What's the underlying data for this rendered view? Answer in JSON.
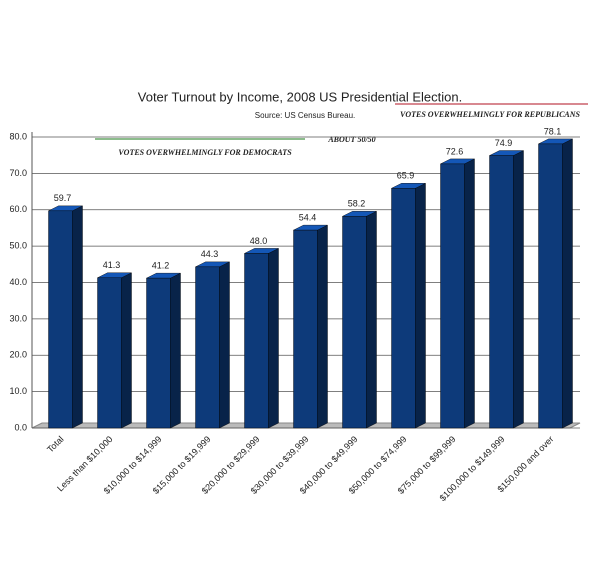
{
  "chart_data": {
    "type": "bar3d",
    "title": "Voter Turnout by Income, 2008 US Presidential Election.",
    "subtitle": "Source: US Census Bureau.",
    "annotations": [
      {
        "text": "VOTES OVERWHELMINGLY FOR DEMOCRATS",
        "color": "#1a7a1a"
      },
      {
        "text": "ABOUT 50/50",
        "color": "#1a2a8a"
      },
      {
        "text": "VOTES OVERWHELMINGLY FOR REPUBLICANS",
        "color": "#b01020"
      }
    ],
    "categories": [
      "Total",
      "Less than $10,000",
      "$10,000 to $14,999",
      "$15,000 to $19,999",
      "$20,000 to $29,999",
      "$30,000 to $39,999",
      "$40,000 to $49,999",
      "$50,000 to $74,999",
      "$75,000 to $99,999",
      "$100,000 to $149,999",
      "$150,000 and over"
    ],
    "values": [
      59.7,
      41.3,
      41.2,
      44.3,
      48.0,
      54.4,
      58.2,
      65.9,
      72.6,
      74.9,
      78.1
    ],
    "value_labels": [
      "59.7",
      "41.3",
      "41.2",
      "44.3",
      "48.0",
      "54.4",
      "58.2",
      "65.9",
      "72.6",
      "74.9",
      "78.1"
    ],
    "color": "#0d3a7a",
    "ylim": [
      0,
      80
    ],
    "yticks": [
      {
        "value": 0,
        "label": "0.0"
      },
      {
        "value": 10,
        "label": "10.0"
      },
      {
        "value": 20,
        "label": "20.0"
      },
      {
        "value": 30,
        "label": "30.0"
      },
      {
        "value": 40,
        "label": "40.0"
      },
      {
        "value": 50,
        "label": "50.0"
      },
      {
        "value": 60,
        "label": "60.0"
      },
      {
        "value": 70,
        "label": "70.0"
      },
      {
        "value": 80,
        "label": "80.0"
      }
    ],
    "grid": true
  }
}
